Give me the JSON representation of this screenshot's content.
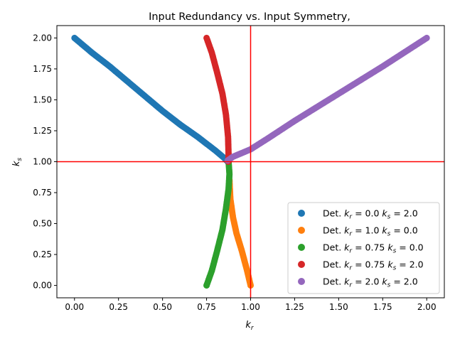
{
  "chart_data": {
    "type": "scatter",
    "title": "Input Redundancy vs. Input Symmetry,",
    "xlabel": {
      "main": "k",
      "sub": "r"
    },
    "ylabel": {
      "main": "k",
      "sub": "s"
    },
    "xlim": [
      -0.1,
      2.1
    ],
    "ylim": [
      -0.1,
      2.1
    ],
    "xticks": [
      "0.00",
      "0.25",
      "0.50",
      "0.75",
      "1.00",
      "1.25",
      "1.50",
      "1.75",
      "2.00"
    ],
    "yticks": [
      "0.00",
      "0.25",
      "0.50",
      "0.75",
      "1.00",
      "1.25",
      "1.50",
      "1.75",
      "2.00"
    ],
    "reference_lines": {
      "vertical_x": 1.0,
      "horizontal_y": 1.0,
      "color": "#ff0000"
    },
    "legend_placement": "lower-right",
    "series": [
      {
        "legend": {
          "prefix": "Det. ",
          "kr_value": "0.0",
          "ks_value": "2.0"
        },
        "color": "#1f77b4",
        "points": [
          [
            0.0,
            2.0
          ],
          [
            0.1,
            1.88
          ],
          [
            0.2,
            1.77
          ],
          [
            0.3,
            1.65
          ],
          [
            0.4,
            1.53
          ],
          [
            0.5,
            1.41
          ],
          [
            0.6,
            1.3
          ],
          [
            0.7,
            1.2
          ],
          [
            0.8,
            1.09
          ],
          [
            0.85,
            1.03
          ],
          [
            0.87,
            1.0
          ]
        ]
      },
      {
        "legend": {
          "prefix": "Det. ",
          "kr_value": "1.0",
          "ks_value": "0.0"
        },
        "color": "#ff7f0e",
        "points": [
          [
            0.88,
            0.85
          ],
          [
            0.885,
            0.7
          ],
          [
            0.9,
            0.55
          ],
          [
            0.92,
            0.42
          ],
          [
            0.95,
            0.28
          ],
          [
            0.98,
            0.12
          ],
          [
            1.0,
            0.0
          ]
        ]
      },
      {
        "legend": {
          "prefix": "Det. ",
          "kr_value": "0.75",
          "ks_value": "0.0"
        },
        "color": "#2ca02c",
        "points": [
          [
            0.75,
            0.0
          ],
          [
            0.78,
            0.12
          ],
          [
            0.81,
            0.28
          ],
          [
            0.84,
            0.45
          ],
          [
            0.86,
            0.62
          ],
          [
            0.875,
            0.78
          ],
          [
            0.88,
            0.9
          ],
          [
            0.875,
            1.0
          ]
        ]
      },
      {
        "legend": {
          "prefix": "Det. ",
          "kr_value": "0.75",
          "ks_value": "2.0"
        },
        "color": "#d62728",
        "points": [
          [
            0.75,
            2.0
          ],
          [
            0.78,
            1.88
          ],
          [
            0.81,
            1.72
          ],
          [
            0.84,
            1.55
          ],
          [
            0.86,
            1.38
          ],
          [
            0.872,
            1.2
          ],
          [
            0.875,
            1.05
          ],
          [
            0.873,
            1.0
          ]
        ]
      },
      {
        "legend": {
          "prefix": "Det. ",
          "kr_value": "2.0",
          "ks_value": "2.0"
        },
        "color": "#9467bd",
        "points": [
          [
            0.87,
            1.01
          ],
          [
            0.9,
            1.04
          ],
          [
            1.0,
            1.1
          ],
          [
            1.1,
            1.19
          ],
          [
            1.25,
            1.33
          ],
          [
            1.5,
            1.55
          ],
          [
            1.75,
            1.77
          ],
          [
            2.0,
            2.0
          ]
        ]
      }
    ]
  }
}
